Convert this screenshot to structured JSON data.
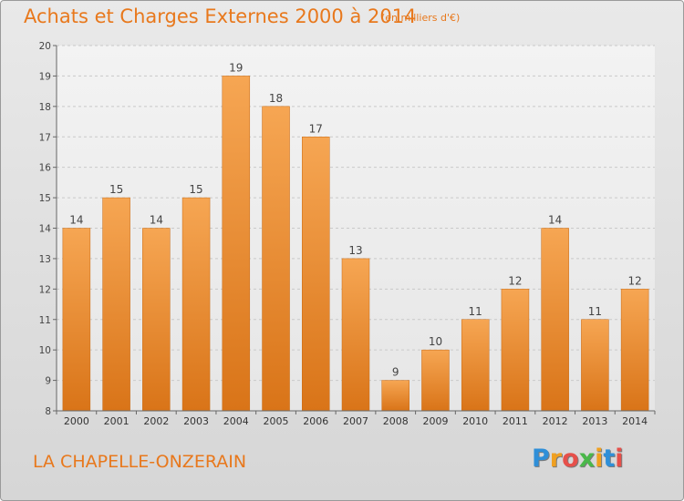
{
  "header": {
    "title": "Achats et Charges Externes 2000 à 2014",
    "unit": "(en milliers d'€)"
  },
  "footer": {
    "commune": "LA CHAPELLE-ONZERAIN",
    "logo_letters": [
      "P",
      "r",
      "o",
      "x",
      "i",
      "t",
      "i"
    ],
    "logo_colors": [
      "#2f8fd8",
      "#f0a020",
      "#e6504a",
      "#4ab84a",
      "#f0a020",
      "#2f8fd8",
      "#e6504a"
    ]
  },
  "chart_data": {
    "type": "bar",
    "categories": [
      "2000",
      "2001",
      "2002",
      "2003",
      "2004",
      "2005",
      "2006",
      "2007",
      "2008",
      "2009",
      "2010",
      "2011",
      "2012",
      "2013",
      "2014"
    ],
    "values": [
      14,
      15,
      14,
      15,
      19,
      18,
      17,
      13,
      9,
      10,
      11,
      12,
      14,
      11,
      12
    ],
    "data_labels": [
      "14",
      "15",
      "14",
      "15",
      "19",
      "18",
      "17",
      "13",
      "9",
      "10",
      "11",
      "12",
      "14",
      "11",
      "12"
    ],
    "ylim": [
      8,
      20
    ],
    "yticks": [
      "8",
      "9",
      "10",
      "11",
      "12",
      "13",
      "14",
      "15",
      "16",
      "17",
      "18",
      "19",
      "20"
    ],
    "grid": true,
    "bar_color_top": "#f6a653",
    "bar_color_bottom": "#d97418",
    "title": "Achats et Charges Externes 2000 à 2014",
    "xlabel": "",
    "ylabel": ""
  }
}
